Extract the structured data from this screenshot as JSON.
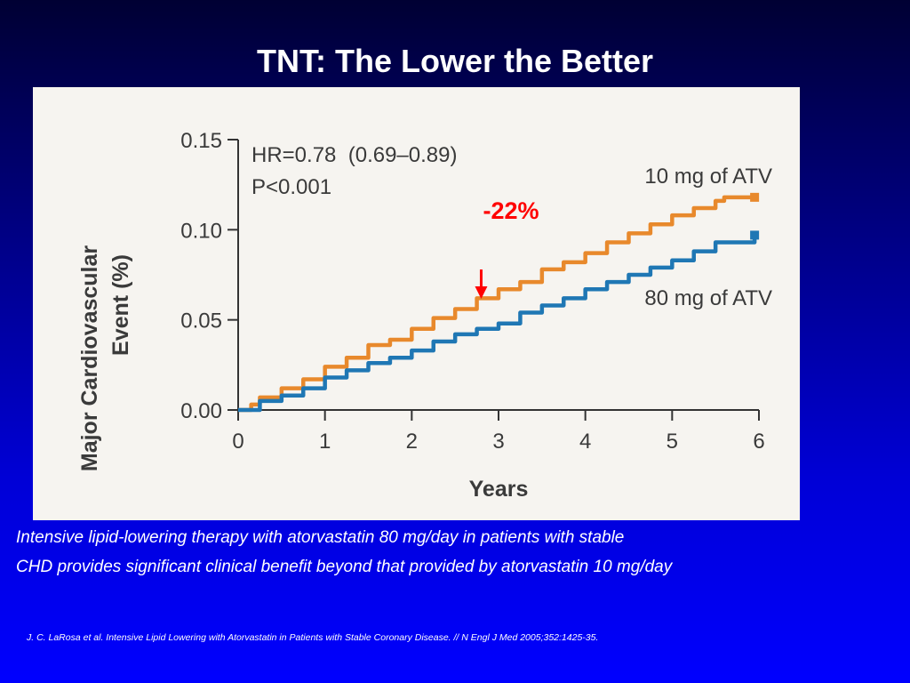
{
  "slide": {
    "title": "TNT: The Lower the Better",
    "caption_line1": "Intensive lipid-lowering therapy with atorvastatin 80 mg/day in patients with stable",
    "caption_line2": "CHD provides significant clinical benefit beyond that provided by atorvastatin 10 mg/day",
    "reference": "J. C. LaRosa et al. Intensive Lipid Lowering with Atorvastatin in Patients with Stable Coronary Disease. // N Engl J Med 2005;352:1425-35."
  },
  "chart_data": {
    "type": "line",
    "title": "",
    "xlabel": "Years",
    "ylabel_line1": "Major Cardiovascular",
    "ylabel_line2": "Event (%)",
    "xlim": [
      0,
      6
    ],
    "ylim": [
      0,
      0.15
    ],
    "x_ticks": [
      "0",
      "1",
      "2",
      "3",
      "4",
      "5",
      "6"
    ],
    "y_ticks": [
      "0.00",
      "0.05",
      "0.10",
      "0.15"
    ],
    "grid": false,
    "annotations": {
      "hr": "HR=0.78  (0.69–0.89)",
      "p": "P<0.001",
      "reduction": "-22%",
      "reduction_color": "#ff0000",
      "arrow_x": 2.8
    },
    "series": [
      {
        "name": "10 mg of ATV",
        "color": "#e8892c",
        "x": [
          0,
          0.15,
          0.25,
          0.5,
          0.75,
          1.0,
          1.25,
          1.5,
          1.75,
          2.0,
          2.25,
          2.5,
          2.75,
          3.0,
          3.25,
          3.5,
          3.75,
          4.0,
          4.25,
          4.5,
          4.75,
          5.0,
          5.25,
          5.5,
          5.6,
          5.95
        ],
        "y": [
          0,
          0.003,
          0.007,
          0.012,
          0.017,
          0.024,
          0.029,
          0.036,
          0.039,
          0.045,
          0.051,
          0.056,
          0.062,
          0.067,
          0.071,
          0.078,
          0.082,
          0.087,
          0.093,
          0.098,
          0.103,
          0.108,
          0.112,
          0.116,
          0.118,
          0.118
        ]
      },
      {
        "name": "80 mg of ATV",
        "color": "#1f77b4",
        "x": [
          0,
          0.25,
          0.5,
          0.75,
          1.0,
          1.25,
          1.5,
          1.75,
          2.0,
          2.25,
          2.5,
          2.75,
          3.0,
          3.25,
          3.5,
          3.75,
          4.0,
          4.25,
          4.5,
          4.75,
          5.0,
          5.25,
          5.5,
          5.6,
          5.95
        ],
        "y": [
          0,
          0.005,
          0.008,
          0.012,
          0.018,
          0.022,
          0.026,
          0.029,
          0.033,
          0.038,
          0.042,
          0.045,
          0.048,
          0.054,
          0.058,
          0.062,
          0.067,
          0.071,
          0.075,
          0.079,
          0.083,
          0.088,
          0.093,
          0.093,
          0.097
        ]
      }
    ]
  }
}
